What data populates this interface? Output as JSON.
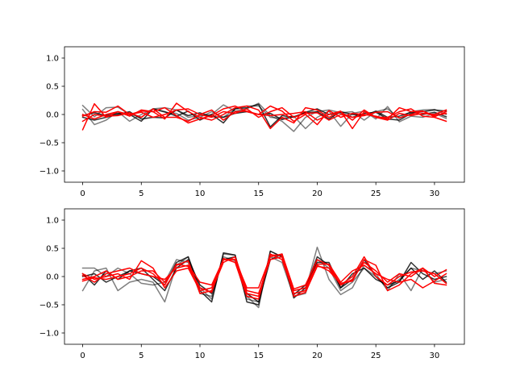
{
  "chart_data": [
    {
      "type": "line",
      "xlim": [
        -1.55,
        32.55
      ],
      "ylim": [
        -1.2,
        1.2
      ],
      "xticks": [
        0,
        5,
        10,
        15,
        20,
        25,
        30
      ],
      "yticks": [
        -1.0,
        -0.5,
        0.0,
        0.5,
        1.0
      ],
      "xtick_labels": [
        "0",
        "5",
        "10",
        "15",
        "20",
        "25",
        "30"
      ],
      "ytick_labels": [
        "−1.0",
        "−0.5",
        "0.0",
        "0.5",
        "1.0"
      ],
      "grid": false,
      "x": [
        0,
        1,
        2,
        3,
        4,
        5,
        6,
        7,
        8,
        9,
        10,
        11,
        12,
        13,
        14,
        15,
        16,
        17,
        18,
        19,
        20,
        21,
        22,
        23,
        24,
        25,
        26,
        27,
        28,
        29,
        30,
        31
      ],
      "series": [
        {
          "color": "#000000",
          "opacity": 0.5,
          "values": [
            0.16,
            -0.04,
            0.12,
            0.13,
            0.0,
            -0.05,
            0.1,
            0.12,
            0.08,
            -0.05,
            -0.02,
            0.0,
            0.17,
            0.06,
            0.1,
            0.2,
            -0.02,
            -0.12,
            -0.3,
            -0.05,
            0.05,
            0.08,
            0.03,
            0.05,
            -0.1,
            0.05,
            0.1,
            -0.07,
            0.05,
            0.08,
            0.09,
            0.0
          ]
        },
        {
          "color": "#000000",
          "opacity": 0.5,
          "values": [
            0.09,
            -0.18,
            -0.1,
            0.05,
            -0.12,
            0.0,
            0.1,
            0.04,
            0.02,
            -0.1,
            -0.05,
            0.05,
            -0.05,
            0.1,
            0.15,
            0.15,
            -0.05,
            -0.07,
            -0.03,
            -0.25,
            -0.05,
            0.06,
            -0.21,
            0.02,
            0.06,
            -0.08,
            0.14,
            -0.13,
            -0.03,
            -0.05,
            0.02,
            -0.07
          ]
        },
        {
          "color": "#000000",
          "opacity": 0.8,
          "values": [
            -0.02,
            0.03,
            -0.02,
            0.02,
            0.0,
            -0.12,
            0.1,
            0.05,
            -0.03,
            0.06,
            -0.1,
            0.0,
            -0.15,
            0.1,
            0.12,
            0.18,
            -0.22,
            -0.02,
            -0.05,
            0.04,
            0.1,
            0.0,
            0.03,
            -0.05,
            0.02,
            0.04,
            -0.08,
            -0.1,
            0.02,
            0.05,
            0.08,
            0.06
          ]
        },
        {
          "color": "#000000",
          "opacity": 0.8,
          "values": [
            -0.05,
            -0.1,
            -0.05,
            0.0,
            0.05,
            -0.08,
            -0.05,
            -0.06,
            0.08,
            -0.02,
            0.03,
            -0.04,
            -0.05,
            0.02,
            0.05,
            0.0,
            0.02,
            -0.09,
            -0.04,
            0.03,
            0.05,
            -0.08,
            0.05,
            0.0,
            -0.02,
            0.06,
            -0.05,
            -0.03,
            0.04,
            0.0,
            0.04,
            -0.04
          ]
        },
        {
          "color": "#ff0000",
          "opacity": 1.0,
          "values": [
            -0.27,
            0.19,
            -0.05,
            0.05,
            -0.03,
            0.08,
            0.05,
            -0.08,
            0.2,
            0.05,
            -0.05,
            -0.1,
            0.0,
            0.12,
            0.15,
            0.08,
            -0.25,
            -0.05,
            -0.15,
            0.12,
            0.08,
            -0.05,
            0.05,
            -0.1,
            0.08,
            -0.05,
            -0.05,
            0.05,
            0.1,
            -0.03,
            -0.05,
            -0.12
          ]
        },
        {
          "color": "#ff0000",
          "opacity": 1.0,
          "values": [
            -0.03,
            0.05,
            0.04,
            0.15,
            0.0,
            0.06,
            0.05,
            0.12,
            -0.02,
            -0.15,
            -0.08,
            -0.02,
            0.1,
            0.15,
            0.05,
            0.0,
            0.15,
            0.06,
            -0.12,
            0.0,
            -0.18,
            0.07,
            -0.05,
            0.02,
            0.0,
            -0.03,
            -0.08,
            0.12,
            0.05,
            0.06,
            -0.02,
            0.02
          ]
        },
        {
          "color": "#ff0000",
          "opacity": 1.0,
          "values": [
            0.0,
            -0.08,
            0.0,
            0.05,
            0.0,
            0.04,
            -0.05,
            0.0,
            0.08,
            0.1,
            0.0,
            -0.05,
            0.05,
            0.02,
            0.1,
            -0.05,
            0.05,
            0.12,
            -0.05,
            0.02,
            0.03,
            -0.1,
            0.0,
            -0.05,
            -0.02,
            0.04,
            0.05,
            -0.06,
            0.0,
            0.06,
            -0.04,
            0.05
          ]
        },
        {
          "color": "#ff0000",
          "opacity": 1.0,
          "values": [
            -0.12,
            0.0,
            -0.03,
            -0.02,
            0.03,
            -0.05,
            0.1,
            -0.05,
            -0.05,
            -0.12,
            0.0,
            0.08,
            -0.1,
            0.05,
            0.06,
            0.0,
            -0.02,
            0.0,
            0.02,
            0.05,
            -0.1,
            0.0,
            0.06,
            -0.25,
            0.05,
            -0.05,
            -0.1,
            0.02,
            -0.02,
            0.02,
            0.0,
            0.08
          ]
        }
      ]
    },
    {
      "type": "line",
      "xlim": [
        -1.55,
        32.55
      ],
      "ylim": [
        -1.2,
        1.2
      ],
      "xticks": [
        0,
        5,
        10,
        15,
        20,
        25,
        30
      ],
      "yticks": [
        -1.0,
        -0.5,
        0.0,
        0.5,
        1.0
      ],
      "xtick_labels": [
        "0",
        "5",
        "10",
        "15",
        "20",
        "25",
        "30"
      ],
      "ytick_labels": [
        "−1.0",
        "−0.5",
        "0.0",
        "0.5",
        "1.0"
      ],
      "grid": false,
      "x": [
        0,
        1,
        2,
        3,
        4,
        5,
        6,
        7,
        8,
        9,
        10,
        11,
        12,
        13,
        14,
        15,
        16,
        17,
        18,
        19,
        20,
        21,
        22,
        23,
        24,
        25,
        26,
        27,
        28,
        29,
        30,
        31
      ],
      "series": [
        {
          "color": "#000000",
          "opacity": 0.5,
          "values": [
            -0.25,
            0.1,
            0.15,
            -0.25,
            -0.1,
            -0.05,
            -0.1,
            -0.45,
            0.2,
            0.35,
            -0.2,
            -0.4,
            0.4,
            0.38,
            -0.35,
            -0.55,
            0.45,
            0.35,
            -0.3,
            -0.25,
            0.52,
            -0.05,
            -0.32,
            -0.2,
            0.2,
            0.05,
            -0.25,
            0.05,
            -0.25,
            0.15,
            -0.1,
            -0.05
          ]
        },
        {
          "color": "#000000",
          "opacity": 0.5,
          "values": [
            0.15,
            0.15,
            0.0,
            0.15,
            0.05,
            -0.12,
            -0.15,
            -0.1,
            0.3,
            0.25,
            -0.3,
            -0.35,
            0.35,
            0.28,
            -0.4,
            -0.45,
            0.35,
            0.25,
            -0.35,
            -0.3,
            0.3,
            0.15,
            -0.25,
            -0.1,
            0.15,
            0.0,
            -0.2,
            -0.05,
            0.15,
            0.1,
            0.05,
            0.1
          ]
        },
        {
          "color": "#000000",
          "opacity": 0.8,
          "values": [
            0.05,
            -0.15,
            0.1,
            -0.05,
            0.1,
            0.05,
            0.0,
            -0.15,
            0.25,
            0.35,
            -0.25,
            -0.45,
            0.42,
            0.38,
            -0.45,
            -0.5,
            0.45,
            0.35,
            -0.38,
            -0.2,
            0.35,
            0.2,
            -0.2,
            -0.05,
            0.3,
            0.0,
            -0.2,
            -0.1,
            0.25,
            0.05,
            -0.05,
            0.0
          ]
        },
        {
          "color": "#000000",
          "opacity": 0.8,
          "values": [
            0.0,
            0.05,
            -0.1,
            0.0,
            0.1,
            0.15,
            -0.05,
            -0.25,
            0.15,
            0.3,
            -0.15,
            -0.3,
            0.3,
            0.35,
            -0.3,
            -0.45,
            0.3,
            0.4,
            -0.32,
            -0.15,
            0.25,
            0.25,
            -0.2,
            0.05,
            0.15,
            -0.05,
            -0.15,
            -0.08,
            0.15,
            -0.05,
            0.1,
            -0.1
          ]
        },
        {
          "color": "#ff0000",
          "opacity": 1.0,
          "values": [
            0.05,
            -0.05,
            0.0,
            0.05,
            -0.05,
            0.28,
            0.15,
            -0.2,
            0.1,
            0.15,
            -0.25,
            -0.2,
            0.3,
            0.3,
            -0.2,
            -0.2,
            0.35,
            0.4,
            -0.22,
            -0.15,
            0.3,
            0.2,
            -0.15,
            0.0,
            0.35,
            0.0,
            -0.15,
            0.0,
            0.08,
            0.1,
            0.05,
            -0.12
          ]
        },
        {
          "color": "#ff0000",
          "opacity": 1.0,
          "values": [
            -0.05,
            0.0,
            0.1,
            -0.05,
            0.0,
            0.1,
            0.1,
            -0.1,
            0.2,
            0.28,
            -0.3,
            -0.25,
            0.25,
            0.35,
            -0.25,
            -0.3,
            0.3,
            0.35,
            -0.25,
            -0.2,
            0.22,
            0.22,
            -0.1,
            0.1,
            0.2,
            0.05,
            -0.05,
            -0.1,
            -0.05,
            -0.2,
            -0.08,
            0.05
          ]
        },
        {
          "color": "#ff0000",
          "opacity": 1.0,
          "values": [
            0.02,
            -0.1,
            0.05,
            0.1,
            0.15,
            0.05,
            0.0,
            -0.05,
            0.15,
            0.2,
            -0.1,
            -0.15,
            0.3,
            0.3,
            -0.3,
            -0.35,
            0.4,
            0.3,
            -0.3,
            -0.25,
            0.2,
            0.1,
            -0.12,
            -0.08,
            0.3,
            0.2,
            -0.25,
            -0.15,
            0.05,
            0.15,
            0.0,
            0.12
          ]
        },
        {
          "color": "#ff0000",
          "opacity": 1.0,
          "values": [
            -0.08,
            -0.02,
            -0.05,
            0.0,
            0.05,
            0.15,
            0.05,
            -0.15,
            0.22,
            0.18,
            -0.2,
            -0.28,
            0.32,
            0.25,
            -0.35,
            -0.4,
            0.38,
            0.38,
            -0.35,
            -0.28,
            0.18,
            0.15,
            -0.15,
            -0.05,
            0.25,
            0.1,
            -0.1,
            0.05,
            0.0,
            0.15,
            -0.12,
            -0.15
          ]
        }
      ]
    }
  ]
}
